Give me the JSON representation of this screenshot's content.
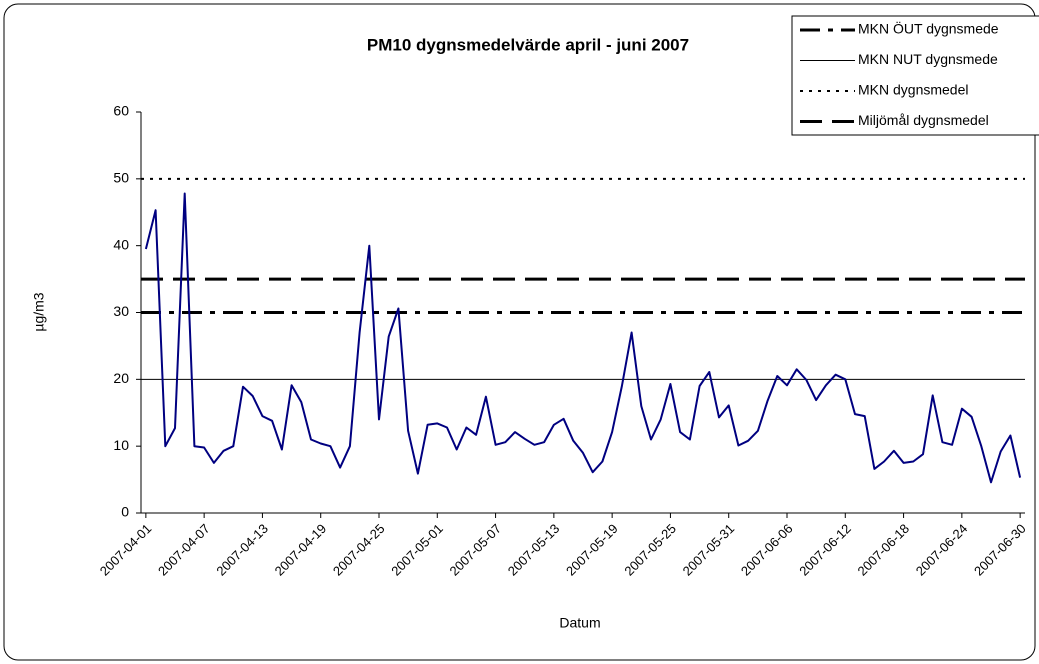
{
  "chart_data": {
    "type": "line",
    "title": "PM10 dygnsmedelvärde april - juni 2007",
    "x_label": "Datum",
    "y_label": "µg/m3",
    "categories": [
      "2007-04-01",
      null,
      null,
      null,
      null,
      null,
      "2007-04-07",
      null,
      null,
      null,
      null,
      null,
      "2007-04-13",
      null,
      null,
      null,
      null,
      null,
      "2007-04-19",
      null,
      null,
      null,
      null,
      null,
      "2007-04-25",
      null,
      null,
      null,
      null,
      null,
      "2007-05-01",
      null,
      null,
      null,
      null,
      null,
      "2007-05-07",
      null,
      null,
      null,
      null,
      null,
      "2007-05-13",
      null,
      null,
      null,
      null,
      null,
      "2007-05-19",
      null,
      null,
      null,
      null,
      null,
      "2007-05-25",
      null,
      null,
      null,
      null,
      null,
      "2007-05-31",
      null,
      null,
      null,
      null,
      null,
      "2007-06-06",
      null,
      null,
      null,
      null,
      null,
      "2007-06-12",
      null,
      null,
      null,
      null,
      null,
      "2007-06-18",
      null,
      null,
      null,
      null,
      null,
      "2007-06-24",
      null,
      null,
      null,
      null,
      null,
      "2007-06-30"
    ],
    "values": [
      39.5,
      45.3,
      10,
      12.7,
      47.8,
      10,
      9.8,
      7.5,
      9.3,
      10,
      18.9,
      17.5,
      14.5,
      13.8,
      9.5,
      19.1,
      16.6,
      11,
      10.4,
      10,
      6.8,
      10,
      27,
      40,
      14,
      26.4,
      30.6,
      12.3,
      5.9,
      13.2,
      13.4,
      12.8,
      9.5,
      12.8,
      11.7,
      17.4,
      10.2,
      10.6,
      12.1,
      11.1,
      10.2,
      10.6,
      13.2,
      14.1,
      10.8,
      9,
      6.1,
      7.7,
      12.1,
      19,
      27,
      16,
      11,
      14,
      19.3,
      12.1,
      11,
      19,
      21.1,
      14.3,
      16.1,
      10.1,
      10.8,
      12.3,
      16.8,
      20.5,
      19.1,
      21.5,
      19.9,
      16.9,
      19.1,
      20.7,
      20,
      14.8,
      14.5,
      6.6,
      7.7,
      9.3,
      7.5,
      7.7,
      8.8,
      17.6,
      10.6,
      10.2,
      15.6,
      14.4,
      10,
      4.6,
      9.2,
      11.6,
      5.3
    ],
    "color": "#000080",
    "ylim": [
      0,
      60
    ],
    "yticks": [
      0,
      10,
      20,
      30,
      40,
      50,
      60
    ],
    "grid": false,
    "reference_lines": [
      {
        "name": "MKN ÖUT dygnsmede",
        "value": 30,
        "style": "dashdot",
        "color": "#000000"
      },
      {
        "name": "MKN NUT dygnsmede",
        "value": 20,
        "style": "solid",
        "color": "#000000"
      },
      {
        "name": "MKN dygnsmedel",
        "value": 50,
        "style": "dotted",
        "color": "#000000"
      },
      {
        "name": "Miljömål dygnsmedel",
        "value": 35,
        "style": "dashed",
        "color": "#000000"
      }
    ],
    "legend": "top-right"
  }
}
